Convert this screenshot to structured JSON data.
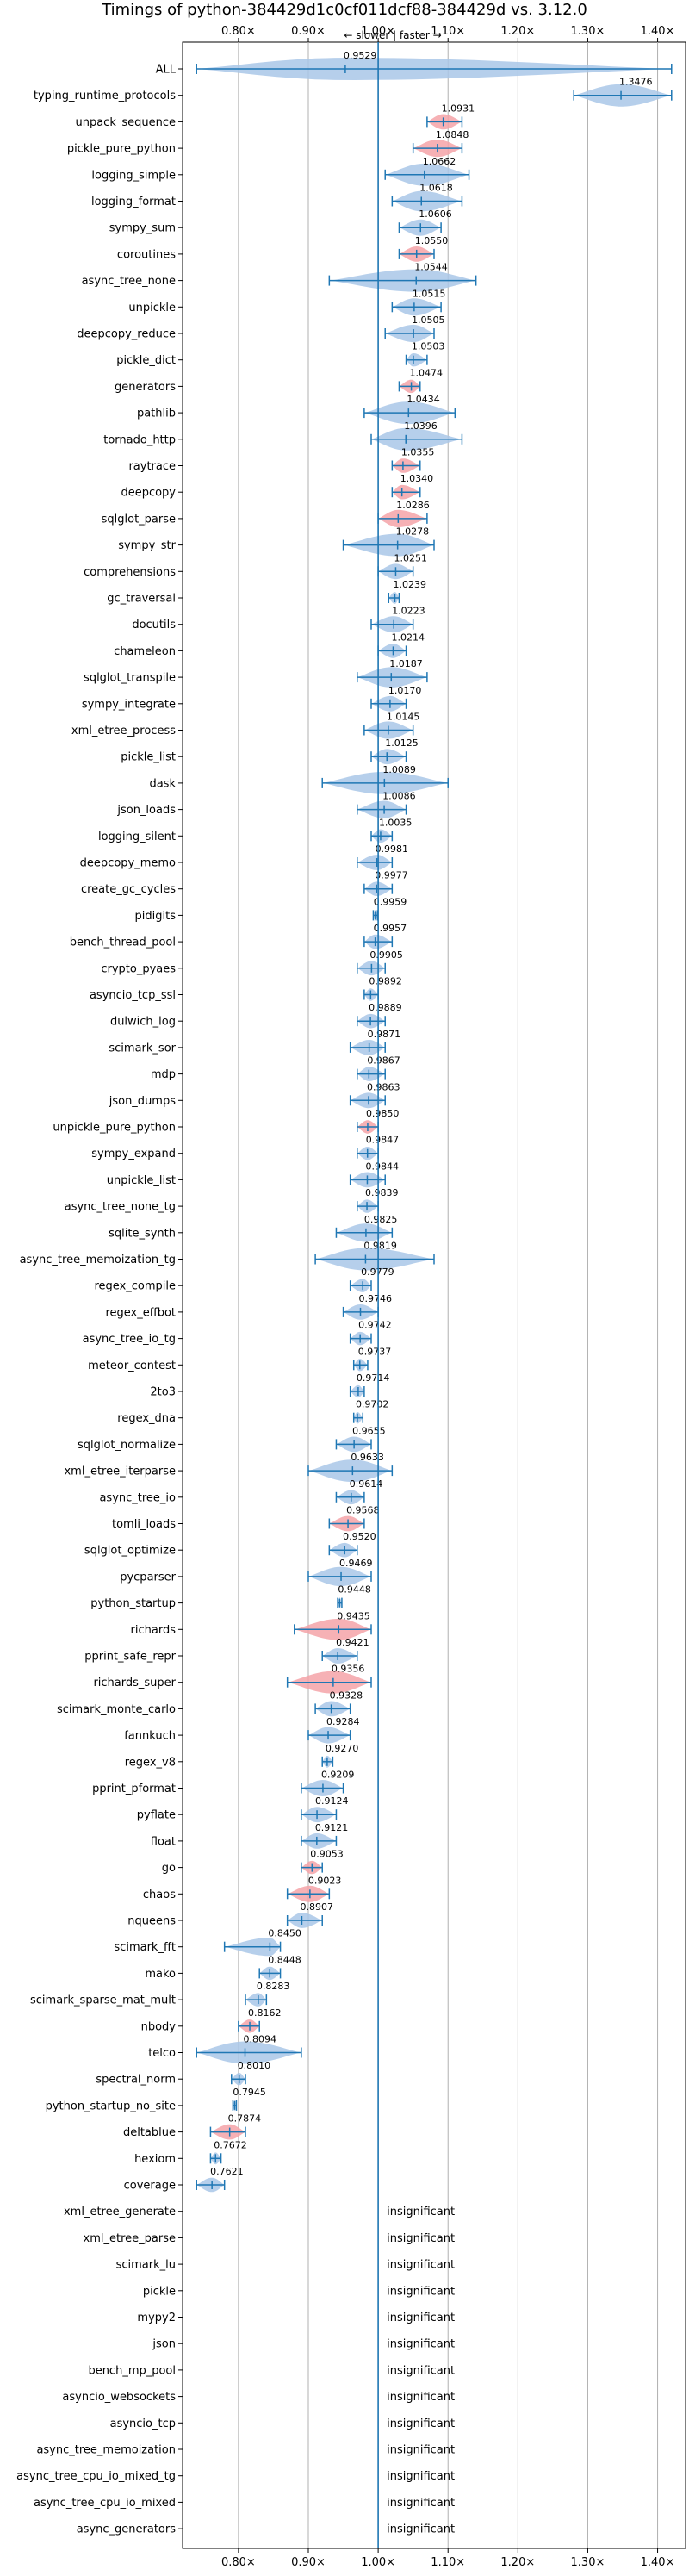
{
  "chart_data": {
    "type": "violin",
    "title": "Timings of python-384429d1c0cf011dcf88-384429d vs. 3.12.0",
    "direction_note": "← slower | faster →",
    "xlim": [
      0.72,
      1.44
    ],
    "xticks": [
      0.8,
      0.9,
      1.0,
      1.1,
      1.2,
      1.3,
      1.4
    ],
    "xtick_labels": [
      "0.80x",
      "0.90x",
      "1.00x",
      "1.10x",
      "1.20x",
      "1.30x",
      "1.40x"
    ],
    "grid": true,
    "reference_line": 1.0,
    "colors": {
      "normal": "#a9c7e8",
      "highlight": "#f4a3a8",
      "line": "#1f77b4"
    },
    "benchmarks": [
      {
        "name": "ALL",
        "value": 0.9529,
        "min": 0.74,
        "max": 1.42,
        "highlight": false,
        "wide": true
      },
      {
        "name": "typing_runtime_protocols",
        "value": 1.3476,
        "min": 1.28,
        "max": 1.42,
        "highlight": false
      },
      {
        "name": "unpack_sequence",
        "value": 1.0931,
        "min": 1.07,
        "max": 1.12,
        "highlight": true
      },
      {
        "name": "pickle_pure_python",
        "value": 1.0848,
        "min": 1.05,
        "max": 1.12,
        "highlight": true
      },
      {
        "name": "logging_simple",
        "value": 1.0662,
        "min": 1.01,
        "max": 1.13,
        "highlight": false
      },
      {
        "name": "logging_format",
        "value": 1.0618,
        "min": 1.02,
        "max": 1.12,
        "highlight": false
      },
      {
        "name": "sympy_sum",
        "value": 1.0606,
        "min": 1.03,
        "max": 1.09,
        "highlight": false
      },
      {
        "name": "coroutines",
        "value": 1.055,
        "min": 1.03,
        "max": 1.08,
        "highlight": true
      },
      {
        "name": "async_tree_none",
        "value": 1.0544,
        "min": 0.93,
        "max": 1.14,
        "highlight": false
      },
      {
        "name": "unpickle",
        "value": 1.0515,
        "min": 1.02,
        "max": 1.09,
        "highlight": false
      },
      {
        "name": "deepcopy_reduce",
        "value": 1.0505,
        "min": 1.01,
        "max": 1.08,
        "highlight": false
      },
      {
        "name": "pickle_dict",
        "value": 1.0503,
        "min": 1.04,
        "max": 1.07,
        "highlight": false
      },
      {
        "name": "generators",
        "value": 1.0474,
        "min": 1.03,
        "max": 1.06,
        "highlight": true
      },
      {
        "name": "pathlib",
        "value": 1.0434,
        "min": 0.98,
        "max": 1.11,
        "highlight": false
      },
      {
        "name": "tornado_http",
        "value": 1.0396,
        "min": 0.99,
        "max": 1.12,
        "highlight": false
      },
      {
        "name": "raytrace",
        "value": 1.0355,
        "min": 1.02,
        "max": 1.06,
        "highlight": true
      },
      {
        "name": "deepcopy",
        "value": 1.034,
        "min": 1.02,
        "max": 1.06,
        "highlight": true
      },
      {
        "name": "sqlglot_parse",
        "value": 1.0286,
        "min": 1.0,
        "max": 1.07,
        "highlight": true
      },
      {
        "name": "sympy_str",
        "value": 1.0278,
        "min": 0.95,
        "max": 1.08,
        "highlight": false
      },
      {
        "name": "comprehensions",
        "value": 1.0251,
        "min": 1.0,
        "max": 1.05,
        "highlight": false
      },
      {
        "name": "gc_traversal",
        "value": 1.0239,
        "min": 1.015,
        "max": 1.03,
        "highlight": false
      },
      {
        "name": "docutils",
        "value": 1.0223,
        "min": 0.99,
        "max": 1.05,
        "highlight": false
      },
      {
        "name": "chameleon",
        "value": 1.0214,
        "min": 1.0,
        "max": 1.04,
        "highlight": false
      },
      {
        "name": "sqlglot_transpile",
        "value": 1.0187,
        "min": 0.97,
        "max": 1.07,
        "highlight": false
      },
      {
        "name": "sympy_integrate",
        "value": 1.017,
        "min": 0.99,
        "max": 1.04,
        "highlight": false
      },
      {
        "name": "xml_etree_process",
        "value": 1.0145,
        "min": 0.98,
        "max": 1.05,
        "highlight": false
      },
      {
        "name": "pickle_list",
        "value": 1.0125,
        "min": 0.99,
        "max": 1.04,
        "highlight": false
      },
      {
        "name": "dask",
        "value": 1.0089,
        "min": 0.92,
        "max": 1.1,
        "highlight": false
      },
      {
        "name": "json_loads",
        "value": 1.0086,
        "min": 0.97,
        "max": 1.04,
        "highlight": false
      },
      {
        "name": "logging_silent",
        "value": 1.0035,
        "min": 0.99,
        "max": 1.02,
        "highlight": false
      },
      {
        "name": "deepcopy_memo",
        "value": 0.9981,
        "min": 0.97,
        "max": 1.02,
        "highlight": false
      },
      {
        "name": "create_gc_cycles",
        "value": 0.9977,
        "min": 0.98,
        "max": 1.02,
        "highlight": false
      },
      {
        "name": "pidigits",
        "value": 0.9959,
        "min": 0.993,
        "max": 0.999,
        "highlight": false
      },
      {
        "name": "bench_thread_pool",
        "value": 0.9957,
        "min": 0.98,
        "max": 1.02,
        "highlight": false
      },
      {
        "name": "crypto_pyaes",
        "value": 0.9905,
        "min": 0.97,
        "max": 1.01,
        "highlight": false
      },
      {
        "name": "asyncio_tcp_ssl",
        "value": 0.9892,
        "min": 0.98,
        "max": 1.0,
        "highlight": false
      },
      {
        "name": "dulwich_log",
        "value": 0.9889,
        "min": 0.97,
        "max": 1.01,
        "highlight": false
      },
      {
        "name": "scimark_sor",
        "value": 0.9871,
        "min": 0.96,
        "max": 1.01,
        "highlight": false
      },
      {
        "name": "mdp",
        "value": 0.9867,
        "min": 0.97,
        "max": 1.01,
        "highlight": false
      },
      {
        "name": "json_dumps",
        "value": 0.9863,
        "min": 0.96,
        "max": 1.01,
        "highlight": false
      },
      {
        "name": "unpickle_pure_python",
        "value": 0.985,
        "min": 0.97,
        "max": 1.0,
        "highlight": true
      },
      {
        "name": "sympy_expand",
        "value": 0.9847,
        "min": 0.97,
        "max": 1.0,
        "highlight": false
      },
      {
        "name": "unpickle_list",
        "value": 0.9844,
        "min": 0.96,
        "max": 1.01,
        "highlight": false
      },
      {
        "name": "async_tree_none_tg",
        "value": 0.9839,
        "min": 0.97,
        "max": 1.0,
        "highlight": false
      },
      {
        "name": "sqlite_synth",
        "value": 0.9825,
        "min": 0.94,
        "max": 1.02,
        "highlight": false
      },
      {
        "name": "async_tree_memoization_tg",
        "value": 0.9819,
        "min": 0.91,
        "max": 1.08,
        "highlight": false
      },
      {
        "name": "regex_compile",
        "value": 0.9779,
        "min": 0.96,
        "max": 0.99,
        "highlight": false
      },
      {
        "name": "regex_effbot",
        "value": 0.9746,
        "min": 0.95,
        "max": 1.0,
        "highlight": false
      },
      {
        "name": "async_tree_io_tg",
        "value": 0.9742,
        "min": 0.96,
        "max": 0.99,
        "highlight": false
      },
      {
        "name": "meteor_contest",
        "value": 0.9737,
        "min": 0.965,
        "max": 0.985,
        "highlight": false
      },
      {
        "name": "2to3",
        "value": 0.9714,
        "min": 0.96,
        "max": 0.98,
        "highlight": false
      },
      {
        "name": "regex_dna",
        "value": 0.9702,
        "min": 0.965,
        "max": 0.978,
        "highlight": false
      },
      {
        "name": "sqlglot_normalize",
        "value": 0.9655,
        "min": 0.94,
        "max": 0.99,
        "highlight": false
      },
      {
        "name": "xml_etree_iterparse",
        "value": 0.9633,
        "min": 0.9,
        "max": 1.02,
        "highlight": false
      },
      {
        "name": "async_tree_io",
        "value": 0.9614,
        "min": 0.94,
        "max": 0.98,
        "highlight": false
      },
      {
        "name": "tomli_loads",
        "value": 0.9568,
        "min": 0.93,
        "max": 0.98,
        "highlight": true
      },
      {
        "name": "sqlglot_optimize",
        "value": 0.952,
        "min": 0.93,
        "max": 0.97,
        "highlight": false
      },
      {
        "name": "pycparser",
        "value": 0.9469,
        "min": 0.9,
        "max": 0.99,
        "highlight": false
      },
      {
        "name": "python_startup",
        "value": 0.9448,
        "min": 0.942,
        "max": 0.948,
        "highlight": false
      },
      {
        "name": "richards",
        "value": 0.9435,
        "min": 0.88,
        "max": 0.99,
        "highlight": true
      },
      {
        "name": "pprint_safe_repr",
        "value": 0.9421,
        "min": 0.92,
        "max": 0.97,
        "highlight": false
      },
      {
        "name": "richards_super",
        "value": 0.9356,
        "min": 0.87,
        "max": 0.99,
        "highlight": true
      },
      {
        "name": "scimark_monte_carlo",
        "value": 0.9328,
        "min": 0.91,
        "max": 0.96,
        "highlight": false
      },
      {
        "name": "fannkuch",
        "value": 0.9284,
        "min": 0.9,
        "max": 0.96,
        "highlight": false
      },
      {
        "name": "regex_v8",
        "value": 0.927,
        "min": 0.92,
        "max": 0.935,
        "highlight": false
      },
      {
        "name": "pprint_pformat",
        "value": 0.9209,
        "min": 0.89,
        "max": 0.95,
        "highlight": false
      },
      {
        "name": "pyflate",
        "value": 0.9124,
        "min": 0.89,
        "max": 0.94,
        "highlight": false
      },
      {
        "name": "float",
        "value": 0.9121,
        "min": 0.89,
        "max": 0.94,
        "highlight": false
      },
      {
        "name": "go",
        "value": 0.9053,
        "min": 0.89,
        "max": 0.92,
        "highlight": true
      },
      {
        "name": "chaos",
        "value": 0.9023,
        "min": 0.87,
        "max": 0.93,
        "highlight": true
      },
      {
        "name": "nqueens",
        "value": 0.8907,
        "min": 0.87,
        "max": 0.92,
        "highlight": false
      },
      {
        "name": "scimark_fft",
        "value": 0.845,
        "min": 0.78,
        "max": 0.86,
        "highlight": false
      },
      {
        "name": "mako",
        "value": 0.8448,
        "min": 0.83,
        "max": 0.86,
        "highlight": false
      },
      {
        "name": "scimark_sparse_mat_mult",
        "value": 0.8283,
        "min": 0.81,
        "max": 0.84,
        "highlight": false
      },
      {
        "name": "nbody",
        "value": 0.8162,
        "min": 0.8,
        "max": 0.83,
        "highlight": true
      },
      {
        "name": "telco",
        "value": 0.8094,
        "min": 0.74,
        "max": 0.89,
        "highlight": false
      },
      {
        "name": "spectral_norm",
        "value": 0.801,
        "min": 0.79,
        "max": 0.81,
        "highlight": false
      },
      {
        "name": "python_startup_no_site",
        "value": 0.7945,
        "min": 0.792,
        "max": 0.797,
        "highlight": false
      },
      {
        "name": "deltablue",
        "value": 0.7874,
        "min": 0.76,
        "max": 0.81,
        "highlight": true
      },
      {
        "name": "hexiom",
        "value": 0.7672,
        "min": 0.76,
        "max": 0.775,
        "highlight": false
      },
      {
        "name": "coverage",
        "value": 0.7621,
        "min": 0.74,
        "max": 0.78,
        "highlight": false
      }
    ],
    "insignificant_label": "insignificant",
    "insignificant": [
      "xml_etree_generate",
      "xml_etree_parse",
      "scimark_lu",
      "pickle",
      "mypy2",
      "json",
      "bench_mp_pool",
      "asyncio_websockets",
      "asyncio_tcp",
      "async_tree_memoization",
      "async_tree_cpu_io_mixed_tg",
      "async_tree_cpu_io_mixed",
      "async_generators"
    ]
  }
}
